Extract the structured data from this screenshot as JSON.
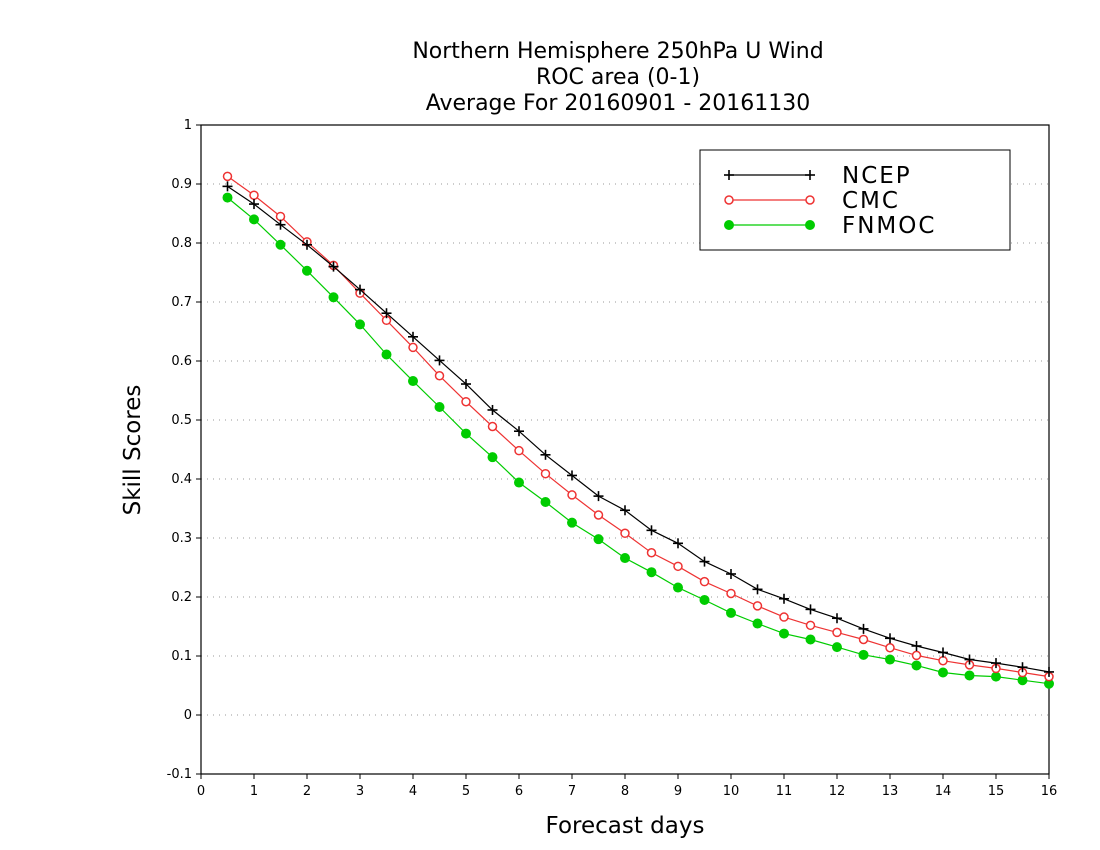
{
  "chart_data": {
    "type": "line",
    "title_lines": [
      "Northern Hemisphere 250hPa U Wind",
      "ROC area (0-1)",
      "Average For 20160901 - 20161130"
    ],
    "xlabel": "Forecast days",
    "ylabel": "Skill Scores",
    "xlim": [
      0,
      16
    ],
    "ylim": [
      -0.1,
      1
    ],
    "xticks": [
      "0",
      "1",
      "2",
      "3",
      "4",
      "5",
      "6",
      "7",
      "8",
      "9",
      "10",
      "11",
      "12",
      "13",
      "14",
      "15",
      "16"
    ],
    "yticks": [
      "-0.1",
      "0",
      "0.1",
      "0.2",
      "0.3",
      "0.4",
      "0.5",
      "0.6",
      "0.7",
      "0.8",
      "0.9",
      "1"
    ],
    "grid": true,
    "legend_position": "top-right",
    "x": [
      0.5,
      1,
      1.5,
      2,
      2.5,
      3,
      3.5,
      4,
      4.5,
      5,
      5.5,
      6,
      6.5,
      7,
      7.5,
      8,
      8.5,
      9,
      9.5,
      10,
      10.5,
      11,
      11.5,
      12,
      12.5,
      13,
      13.5,
      14,
      14.5,
      15,
      15.5,
      16
    ],
    "series": [
      {
        "name": "NCEP",
        "color": "#000000",
        "marker": "plus",
        "values": [
          0.896,
          0.866,
          0.831,
          0.797,
          0.76,
          0.721,
          0.681,
          0.641,
          0.601,
          0.561,
          0.517,
          0.481,
          0.441,
          0.406,
          0.371,
          0.347,
          0.313,
          0.291,
          0.26,
          0.239,
          0.213,
          0.197,
          0.179,
          0.164,
          0.146,
          0.13,
          0.117,
          0.106,
          0.094,
          0.088,
          0.081,
          0.073
        ]
      },
      {
        "name": "CMC",
        "color": "#ee3333",
        "marker": "open-circle",
        "values": [
          0.913,
          0.881,
          0.845,
          0.802,
          0.762,
          0.715,
          0.669,
          0.623,
          0.575,
          0.531,
          0.489,
          0.448,
          0.409,
          0.373,
          0.339,
          0.308,
          0.275,
          0.252,
          0.226,
          0.206,
          0.185,
          0.166,
          0.152,
          0.14,
          0.128,
          0.114,
          0.101,
          0.092,
          0.085,
          0.079,
          0.072,
          0.065
        ]
      },
      {
        "name": "FNMOC",
        "color": "#00cc00",
        "marker": "filled-circle",
        "values": [
          0.877,
          0.84,
          0.797,
          0.753,
          0.708,
          0.662,
          0.611,
          0.566,
          0.522,
          0.477,
          0.437,
          0.394,
          0.361,
          0.326,
          0.298,
          0.266,
          0.242,
          0.216,
          0.195,
          0.173,
          0.155,
          0.138,
          0.128,
          0.115,
          0.102,
          0.094,
          0.084,
          0.072,
          0.067,
          0.065,
          0.059,
          0.053
        ]
      }
    ]
  }
}
